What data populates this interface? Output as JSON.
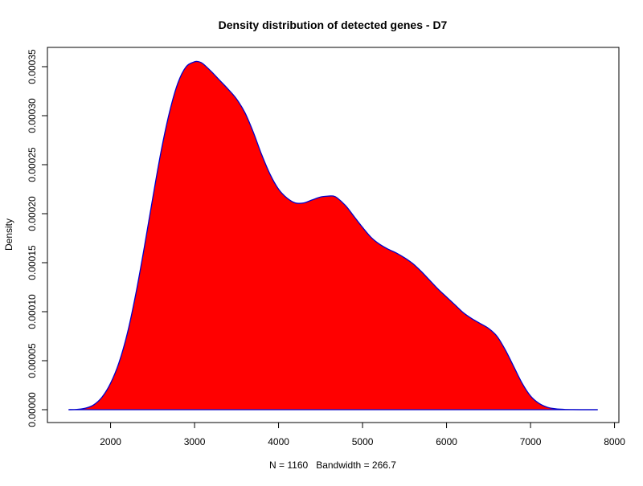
{
  "chart_data": {
    "type": "area",
    "title": "Density distribution of detected genes - D7",
    "xlabel": "N = 1160   Bandwidth = 266.7",
    "ylabel": "Density",
    "xlim": [
      1500,
      7800
    ],
    "ylim": [
      0,
      0.00035
    ],
    "xticks": [
      2000,
      3000,
      4000,
      5000,
      6000,
      7000,
      8000
    ],
    "yticks": [
      "0.00000",
      "0.00005",
      "0.00010",
      "0.00015",
      "0.00020",
      "0.00025",
      "0.00030",
      "0.00035"
    ],
    "grid": false,
    "series": [
      {
        "fill_color": "#ff0000",
        "line_color": "#0000cc",
        "x": [
          1500,
          1600,
          1700,
          1800,
          1900,
          2000,
          2100,
          2200,
          2300,
          2400,
          2500,
          2600,
          2700,
          2800,
          2900,
          3000,
          3050,
          3100,
          3200,
          3300,
          3400,
          3500,
          3600,
          3700,
          3800,
          3900,
          4000,
          4100,
          4200,
          4300,
          4400,
          4500,
          4600,
          4650,
          4700,
          4800,
          4900,
          5000,
          5100,
          5200,
          5300,
          5400,
          5500,
          5600,
          5700,
          5800,
          5900,
          6000,
          6100,
          6200,
          6300,
          6400,
          6500,
          6600,
          6700,
          6800,
          6900,
          7000,
          7100,
          7200,
          7300,
          7400,
          7500,
          7600,
          7700,
          7800
        ],
        "y": [
          0.0,
          3e-07,
          1.5e-06,
          5e-06,
          1.3e-05,
          2.7e-05,
          4.8e-05,
          7.8e-05,
          0.000118,
          0.000165,
          0.000215,
          0.000263,
          0.000303,
          0.000333,
          0.00035,
          0.000355,
          0.000355,
          0.000353,
          0.000345,
          0.000336,
          0.000327,
          0.000317,
          0.000303,
          0.000283,
          0.00026,
          0.00024,
          0.000225,
          0.000216,
          0.000211,
          0.000211,
          0.000214,
          0.000217,
          0.000218,
          0.000218,
          0.000216,
          0.000208,
          0.000197,
          0.000186,
          0.000176,
          0.000169,
          0.000164,
          0.00016,
          0.000155,
          0.000149,
          0.000141,
          0.000132,
          0.000123,
          0.000115,
          0.000107,
          9.9e-05,
          9.3e-05,
          8.8e-05,
          8.3e-05,
          7.5e-05,
          6.1e-05,
          4.4e-05,
          2.7e-05,
          1.4e-05,
          6.5e-06,
          2.5e-06,
          9e-07,
          3e-07,
          1e-07,
          0.0,
          0.0,
          0.0
        ]
      }
    ]
  }
}
